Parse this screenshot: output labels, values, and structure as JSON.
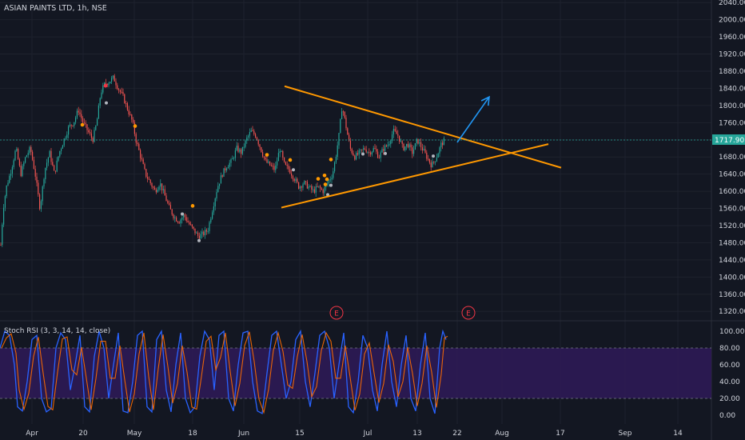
{
  "chart_data": {
    "type": "candlestick",
    "title": "ASIAN PAINTS LTD, 1h, NSE",
    "symbol": "ASIAN PAINTS LTD",
    "interval": "1h",
    "exchange": "NSE",
    "last_price": "1717.90",
    "price_axis": {
      "ticks": [
        "2040.00",
        "2000.00",
        "1960.00",
        "1920.00",
        "1880.00",
        "1840.00",
        "1800.00",
        "1760.00",
        "1720.00",
        "1680.00",
        "1640.00",
        "1600.00",
        "1560.00",
        "1520.00",
        "1480.00",
        "1440.00",
        "1400.00",
        "1360.00",
        "1320.00"
      ],
      "range": [
        1298,
        2046
      ]
    },
    "time_axis": {
      "ticks": [
        "Apr",
        "20",
        "May",
        "18",
        "Jun",
        "15",
        "Jul",
        "13",
        "22",
        "Aug",
        "17",
        "Sep",
        "14"
      ]
    },
    "price_path": [
      [
        1,
        1475
      ],
      [
        4,
        1560
      ],
      [
        8,
        1610
      ],
      [
        14,
        1650
      ],
      [
        20,
        1700
      ],
      [
        26,
        1640
      ],
      [
        32,
        1680
      ],
      [
        38,
        1700
      ],
      [
        44,
        1640
      ],
      [
        50,
        1560
      ],
      [
        56,
        1650
      ],
      [
        62,
        1690
      ],
      [
        68,
        1640
      ],
      [
        74,
        1690
      ],
      [
        80,
        1720
      ],
      [
        86,
        1750
      ],
      [
        92,
        1760
      ],
      [
        98,
        1790
      ],
      [
        104,
        1760
      ],
      [
        110,
        1740
      ],
      [
        116,
        1720
      ],
      [
        121,
        1760
      ],
      [
        126,
        1830
      ],
      [
        131,
        1850
      ],
      [
        136,
        1855
      ],
      [
        142,
        1865
      ],
      [
        148,
        1840
      ],
      [
        154,
        1820
      ],
      [
        160,
        1790
      ],
      [
        166,
        1760
      ],
      [
        170,
        1720
      ],
      [
        176,
        1680
      ],
      [
        182,
        1640
      ],
      [
        188,
        1620
      ],
      [
        194,
        1600
      ],
      [
        200,
        1620
      ],
      [
        206,
        1590
      ],
      [
        212,
        1560
      ],
      [
        218,
        1540
      ],
      [
        224,
        1530
      ],
      [
        230,
        1545
      ],
      [
        236,
        1525
      ],
      [
        242,
        1510
      ],
      [
        248,
        1495
      ],
      [
        254,
        1500
      ],
      [
        260,
        1510
      ],
      [
        266,
        1560
      ],
      [
        272,
        1610
      ],
      [
        278,
        1640
      ],
      [
        284,
        1660
      ],
      [
        290,
        1670
      ],
      [
        296,
        1700
      ],
      [
        302,
        1690
      ],
      [
        308,
        1720
      ],
      [
        314,
        1740
      ],
      [
        320,
        1730
      ],
      [
        326,
        1700
      ],
      [
        332,
        1670
      ],
      [
        338,
        1660
      ],
      [
        344,
        1650
      ],
      [
        350,
        1700
      ],
      [
        356,
        1660
      ],
      [
        362,
        1650
      ],
      [
        368,
        1630
      ],
      [
        374,
        1610
      ],
      [
        380,
        1620
      ],
      [
        386,
        1610
      ],
      [
        392,
        1600
      ],
      [
        398,
        1610
      ],
      [
        404,
        1600
      ],
      [
        410,
        1620
      ],
      [
        416,
        1640
      ],
      [
        420,
        1680
      ],
      [
        424,
        1730
      ],
      [
        428,
        1800
      ],
      [
        432,
        1760
      ],
      [
        438,
        1700
      ],
      [
        444,
        1680
      ],
      [
        450,
        1690
      ],
      [
        456,
        1700
      ],
      [
        462,
        1690
      ],
      [
        468,
        1700
      ],
      [
        474,
        1680
      ],
      [
        480,
        1700
      ],
      [
        486,
        1710
      ],
      [
        492,
        1740
      ],
      [
        498,
        1730
      ],
      [
        504,
        1700
      ],
      [
        510,
        1710
      ],
      [
        516,
        1690
      ],
      [
        522,
        1720
      ],
      [
        528,
        1700
      ],
      [
        534,
        1680
      ],
      [
        540,
        1660
      ],
      [
        546,
        1680
      ],
      [
        552,
        1710
      ],
      [
        556,
        1718
      ]
    ],
    "orange_markers": [
      [
        103,
        1755
      ],
      [
        169,
        1752
      ],
      [
        241,
        1566
      ],
      [
        334,
        1685
      ],
      [
        363,
        1673
      ],
      [
        398,
        1629
      ],
      [
        406,
        1637
      ],
      [
        409,
        1628
      ],
      [
        414,
        1674
      ],
      [
        407,
        1616
      ]
    ],
    "red_markers": [
      [
        132,
        1846
      ]
    ],
    "white_markers": [
      [
        133,
        1806
      ],
      [
        228,
        1547
      ],
      [
        249,
        1485
      ],
      [
        367,
        1650
      ],
      [
        410,
        1592
      ],
      [
        414,
        1614
      ],
      [
        454,
        1687
      ],
      [
        482,
        1688
      ],
      [
        542,
        1682
      ]
    ],
    "trendlines": [
      {
        "from": [
          356,
          1845
        ],
        "to": [
          702,
          1655
        ]
      },
      {
        "from": [
          352,
          1562
        ],
        "to": [
          686,
          1710
        ]
      }
    ],
    "arrow": {
      "from": [
        572,
        1714
      ],
      "to": [
        612,
        1820
      ]
    },
    "event_markers": [
      {
        "label": "E",
        "x": 421
      },
      {
        "label": "E",
        "x": 586
      }
    ],
    "stoch_rsi": {
      "label": "Stoch RSI (3, 3, 14, 14, close)",
      "ticks": [
        "100.00",
        "80.00",
        "60.00",
        "40.00",
        "20.00",
        "0.00"
      ],
      "band": [
        20,
        80
      ],
      "k_path": [
        [
          0,
          80
        ],
        [
          6,
          100
        ],
        [
          12,
          95
        ],
        [
          18,
          60
        ],
        [
          22,
          10
        ],
        [
          28,
          5
        ],
        [
          34,
          40
        ],
        [
          40,
          90
        ],
        [
          46,
          95
        ],
        [
          52,
          20
        ],
        [
          58,
          4
        ],
        [
          64,
          8
        ],
        [
          70,
          80
        ],
        [
          76,
          98
        ],
        [
          82,
          90
        ],
        [
          88,
          30
        ],
        [
          94,
          60
        ],
        [
          100,
          95
        ],
        [
          106,
          10
        ],
        [
          112,
          4
        ],
        [
          118,
          70
        ],
        [
          124,
          100
        ],
        [
          130,
          80
        ],
        [
          136,
          20
        ],
        [
          142,
          60
        ],
        [
          148,
          98
        ],
        [
          154,
          5
        ],
        [
          160,
          3
        ],
        [
          166,
          40
        ],
        [
          172,
          95
        ],
        [
          178,
          100
        ],
        [
          184,
          10
        ],
        [
          190,
          4
        ],
        [
          196,
          90
        ],
        [
          202,
          100
        ],
        [
          208,
          30
        ],
        [
          214,
          4
        ],
        [
          220,
          60
        ],
        [
          226,
          98
        ],
        [
          232,
          20
        ],
        [
          238,
          3
        ],
        [
          244,
          10
        ],
        [
          250,
          70
        ],
        [
          256,
          100
        ],
        [
          262,
          90
        ],
        [
          268,
          30
        ],
        [
          274,
          95
        ],
        [
          280,
          100
        ],
        [
          286,
          20
        ],
        [
          292,
          5
        ],
        [
          298,
          60
        ],
        [
          304,
          98
        ],
        [
          310,
          100
        ],
        [
          316,
          40
        ],
        [
          322,
          5
        ],
        [
          328,
          2
        ],
        [
          334,
          50
        ],
        [
          340,
          95
        ],
        [
          346,
          100
        ],
        [
          352,
          60
        ],
        [
          358,
          20
        ],
        [
          364,
          40
        ],
        [
          370,
          90
        ],
        [
          376,
          100
        ],
        [
          382,
          40
        ],
        [
          388,
          10
        ],
        [
          394,
          50
        ],
        [
          400,
          95
        ],
        [
          406,
          100
        ],
        [
          412,
          80
        ],
        [
          418,
          20
        ],
        [
          424,
          60
        ],
        [
          430,
          98
        ],
        [
          436,
          10
        ],
        [
          442,
          3
        ],
        [
          448,
          40
        ],
        [
          454,
          95
        ],
        [
          460,
          80
        ],
        [
          466,
          30
        ],
        [
          472,
          5
        ],
        [
          478,
          60
        ],
        [
          484,
          100
        ],
        [
          490,
          40
        ],
        [
          496,
          10
        ],
        [
          502,
          60
        ],
        [
          508,
          95
        ],
        [
          514,
          20
        ],
        [
          520,
          5
        ],
        [
          526,
          60
        ],
        [
          532,
          98
        ],
        [
          538,
          20
        ],
        [
          544,
          2
        ],
        [
          550,
          80
        ],
        [
          554,
          100
        ],
        [
          558,
          90
        ]
      ]
    }
  }
}
